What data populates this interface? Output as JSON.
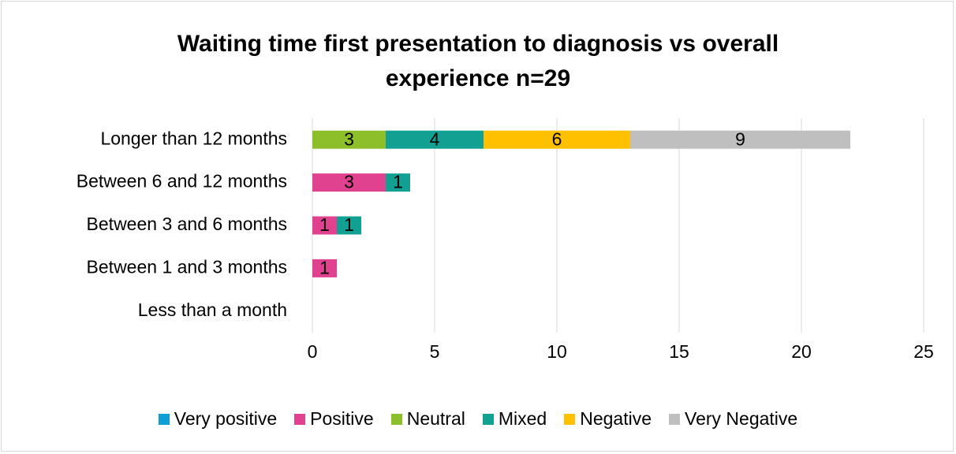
{
  "chart_data": {
    "type": "stacked_bar_horizontal",
    "title": "Waiting time first presentation to diagnosis vs overall experience  n=29",
    "categories": [
      "Longer than 12 months",
      "Between 6 and 12 months",
      "Between 3 and 6 months",
      "Between 1 and 3 months",
      "Less than a month"
    ],
    "series": [
      {
        "name": "Very positive",
        "color": "#0f9ed5",
        "values": [
          0,
          0,
          0,
          0,
          0
        ]
      },
      {
        "name": "Positive",
        "color": "#e0428f",
        "values": [
          0,
          3,
          1,
          1,
          0
        ]
      },
      {
        "name": "Neutral",
        "color": "#8cbf2a",
        "values": [
          3,
          0,
          0,
          0,
          0
        ]
      },
      {
        "name": "Mixed",
        "color": "#12a092",
        "values": [
          4,
          1,
          1,
          0,
          0
        ]
      },
      {
        "name": "Negative",
        "color": "#ffc000",
        "values": [
          6,
          0,
          0,
          0,
          0
        ]
      },
      {
        "name": "Very Negative",
        "color": "#bfbfbf",
        "values": [
          9,
          0,
          0,
          0,
          0
        ]
      }
    ],
    "xlim": [
      0,
      25
    ],
    "xticks": [
      0,
      5,
      10,
      15,
      20,
      25
    ],
    "grid": true,
    "legend": "bottom"
  }
}
